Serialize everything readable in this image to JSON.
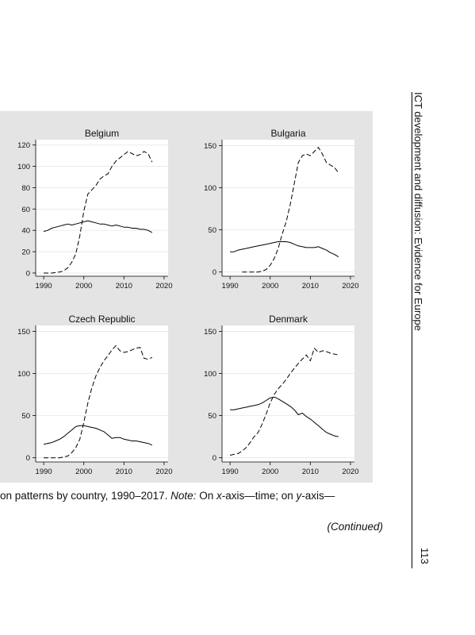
{
  "running_head": "ICT development and diffusion: Evidence for Europe",
  "page_number": "113",
  "caption": {
    "part1": "on patterns by country, 1990–2017. ",
    "note_label": "Note:",
    "part2": " On ",
    "x_var": "x",
    "part3": "-axis—time; on ",
    "y_var": "y",
    "part4": "-axis—"
  },
  "continued": "(Continued)",
  "chart_data": [
    {
      "type": "line",
      "title": "Belgium",
      "xlim": [
        1988,
        2021
      ],
      "ylim": [
        -3,
        125
      ],
      "xticks": [
        1990,
        2000,
        2010,
        2020
      ],
      "yticks": [
        0,
        20,
        40,
        60,
        80,
        100,
        120
      ],
      "series": [
        {
          "style": "solid",
          "color": "#000000",
          "x": [
            1990,
            1991,
            1992,
            1993,
            1994,
            1995,
            1996,
            1997,
            1998,
            1999,
            2000,
            2001,
            2002,
            2003,
            2004,
            2005,
            2006,
            2007,
            2008,
            2009,
            2010,
            2011,
            2012,
            2013,
            2014,
            2015,
            2016,
            2017
          ],
          "y": [
            39,
            40,
            42,
            43,
            44,
            45,
            46,
            45,
            46,
            47,
            48,
            49,
            48,
            47,
            46,
            46,
            45,
            44,
            45,
            44,
            43,
            43,
            42,
            42,
            41,
            41,
            40,
            38
          ]
        },
        {
          "style": "dashed",
          "color": "#000000",
          "x": [
            1990,
            1991,
            1992,
            1993,
            1994,
            1995,
            1996,
            1997,
            1998,
            1999,
            2000,
            2001,
            2002,
            2003,
            2004,
            2005,
            2006,
            2007,
            2008,
            2009,
            2010,
            2011,
            2012,
            2013,
            2014,
            2015,
            2016,
            2017
          ],
          "y": [
            0,
            0,
            0,
            0.5,
            1,
            2,
            5,
            10,
            18,
            35,
            58,
            74,
            78,
            82,
            88,
            91,
            93,
            100,
            105,
            108,
            111,
            114,
            112,
            110,
            111,
            114,
            112,
            104
          ]
        }
      ]
    },
    {
      "type": "line",
      "title": "Bulgaria",
      "xlim": [
        1988,
        2021
      ],
      "ylim": [
        -5,
        157
      ],
      "xticks": [
        1990,
        2000,
        2010,
        2020
      ],
      "yticks": [
        0,
        50,
        100,
        150
      ],
      "series": [
        {
          "style": "solid",
          "color": "#000000",
          "x": [
            1990,
            1991,
            1992,
            1993,
            1994,
            1995,
            1996,
            1997,
            1998,
            1999,
            2000,
            2001,
            2002,
            2003,
            2004,
            2005,
            2006,
            2007,
            2008,
            2009,
            2010,
            2011,
            2012,
            2013,
            2014,
            2015,
            2016,
            2017
          ],
          "y": [
            24,
            24,
            26,
            27,
            28,
            29,
            30,
            31,
            32,
            33,
            34,
            35,
            36,
            36,
            36,
            35,
            33,
            31,
            30,
            29,
            29,
            29,
            30,
            28,
            26,
            23,
            21,
            18
          ]
        },
        {
          "style": "dashed",
          "color": "#000000",
          "x": [
            1993,
            1994,
            1995,
            1996,
            1997,
            1998,
            1999,
            2000,
            2001,
            2002,
            2003,
            2004,
            2005,
            2006,
            2007,
            2008,
            2009,
            2010,
            2011,
            2012,
            2013,
            2014,
            2015,
            2016,
            2017
          ],
          "y": [
            0,
            0,
            0,
            0,
            0,
            1,
            3,
            8,
            16,
            28,
            45,
            60,
            80,
            105,
            130,
            138,
            140,
            138,
            143,
            148,
            140,
            130,
            127,
            124,
            118
          ]
        }
      ]
    },
    {
      "type": "line",
      "title": "Czech Republic",
      "xlim": [
        1988,
        2021
      ],
      "ylim": [
        -5,
        157
      ],
      "xticks": [
        1990,
        2000,
        2010,
        2020
      ],
      "yticks": [
        0,
        50,
        100,
        150
      ],
      "series": [
        {
          "style": "solid",
          "color": "#000000",
          "x": [
            1990,
            1991,
            1992,
            1993,
            1994,
            1995,
            1996,
            1997,
            1998,
            1999,
            2000,
            2001,
            2002,
            2003,
            2004,
            2005,
            2006,
            2007,
            2008,
            2009,
            2010,
            2011,
            2012,
            2013,
            2014,
            2015,
            2016,
            2017
          ],
          "y": [
            16,
            17,
            18,
            20,
            22,
            25,
            29,
            33,
            37,
            38,
            38,
            37,
            36,
            35,
            33,
            31,
            27,
            23,
            24,
            24,
            22,
            21,
            20,
            20,
            19,
            18,
            17,
            15
          ]
        },
        {
          "style": "dashed",
          "color": "#000000",
          "x": [
            1990,
            1991,
            1992,
            1993,
            1994,
            1995,
            1996,
            1997,
            1998,
            1999,
            2000,
            2001,
            2002,
            2003,
            2004,
            2005,
            2006,
            2007,
            2008,
            2009,
            2010,
            2011,
            2012,
            2013,
            2014,
            2015,
            2016,
            2017
          ],
          "y": [
            0,
            0,
            0,
            0,
            0,
            1,
            2,
            6,
            12,
            22,
            42,
            65,
            83,
            97,
            107,
            115,
            121,
            128,
            133,
            127,
            125,
            126,
            128,
            130,
            131,
            118,
            117,
            119
          ]
        }
      ]
    },
    {
      "type": "line",
      "title": "Denmark",
      "xlim": [
        1988,
        2021
      ],
      "ylim": [
        -5,
        157
      ],
      "xticks": [
        1990,
        2000,
        2010,
        2020
      ],
      "yticks": [
        0,
        50,
        100,
        150
      ],
      "series": [
        {
          "style": "solid",
          "color": "#000000",
          "x": [
            1990,
            1991,
            1992,
            1993,
            1994,
            1995,
            1996,
            1997,
            1998,
            1999,
            2000,
            2001,
            2002,
            2003,
            2004,
            2005,
            2006,
            2007,
            2008,
            2009,
            2010,
            2011,
            2012,
            2013,
            2014,
            2015,
            2016,
            2017
          ],
          "y": [
            57,
            57,
            58,
            59,
            60,
            61,
            62,
            63,
            65,
            68,
            71,
            72,
            70,
            67,
            64,
            61,
            57,
            51,
            53,
            49,
            46,
            42,
            38,
            34,
            30,
            28,
            26,
            25
          ]
        },
        {
          "style": "dashed",
          "color": "#000000",
          "x": [
            1990,
            1991,
            1992,
            1993,
            1994,
            1995,
            1996,
            1997,
            1998,
            1999,
            2000,
            2001,
            2002,
            2003,
            2004,
            2005,
            2006,
            2007,
            2008,
            2009,
            2010,
            2011,
            2012,
            2013,
            2014,
            2015,
            2016,
            2017
          ],
          "y": [
            3,
            4,
            5,
            8,
            12,
            18,
            25,
            30,
            40,
            52,
            65,
            75,
            82,
            87,
            93,
            100,
            106,
            112,
            117,
            122,
            115,
            130,
            125,
            127,
            126,
            124,
            123,
            122
          ]
        }
      ]
    }
  ]
}
